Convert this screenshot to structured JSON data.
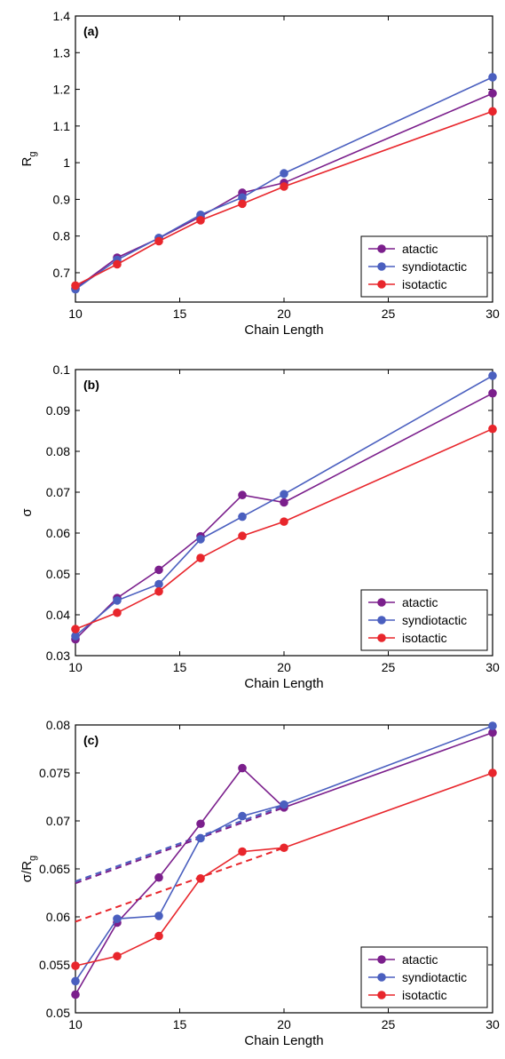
{
  "chart_data": [
    {
      "type": "line",
      "panel_label": "(a)",
      "xlabel": "Chain Length",
      "ylabel": "R",
      "ylabel_sub": "g",
      "xlim": [
        10,
        30
      ],
      "ylim": [
        0.62,
        1.4
      ],
      "x_ticks": [
        10,
        15,
        20,
        25,
        30
      ],
      "y_ticks": [
        0.7,
        0.8,
        0.9,
        1.0,
        1.1,
        1.2,
        1.3,
        1.4
      ],
      "y_tick_labels": [
        "0.7",
        "0.8",
        "0.9",
        "1",
        "1.1",
        "1.2",
        "1.3",
        "1.4"
      ],
      "grid": false,
      "legend_position": "bottom-right",
      "x": [
        10,
        12,
        14,
        16,
        18,
        20,
        30
      ],
      "series": [
        {
          "name": "atactic",
          "color": "#7b1f8c",
          "values": [
            0.657,
            0.741,
            0.794,
            0.853,
            0.918,
            0.945,
            1.189
          ]
        },
        {
          "name": "syndiotactic",
          "color": "#4a5fbf",
          "values": [
            0.655,
            0.735,
            0.795,
            0.858,
            0.905,
            0.971,
            1.233
          ]
        },
        {
          "name": "isotactic",
          "color": "#e8262c",
          "values": [
            0.665,
            0.723,
            0.786,
            0.843,
            0.888,
            0.935,
            1.14
          ]
        }
      ]
    },
    {
      "type": "line",
      "panel_label": "(b)",
      "xlabel": "Chain Length",
      "ylabel": "σ",
      "ylabel_sub": "",
      "xlim": [
        10,
        30
      ],
      "ylim": [
        0.03,
        0.1
      ],
      "x_ticks": [
        10,
        15,
        20,
        25,
        30
      ],
      "y_ticks": [
        0.03,
        0.04,
        0.05,
        0.06,
        0.07,
        0.08,
        0.09,
        0.1
      ],
      "y_tick_labels": [
        "0.03",
        "0.04",
        "0.05",
        "0.06",
        "0.07",
        "0.08",
        "0.09",
        "0.1"
      ],
      "grid": false,
      "legend_position": "bottom-right",
      "x": [
        10,
        12,
        14,
        16,
        18,
        20,
        30
      ],
      "series": [
        {
          "name": "atactic",
          "color": "#7b1f8c",
          "values": [
            0.034,
            0.0441,
            0.051,
            0.0592,
            0.0693,
            0.0675,
            0.0942
          ]
        },
        {
          "name": "syndiotactic",
          "color": "#4a5fbf",
          "values": [
            0.0348,
            0.0435,
            0.0475,
            0.0585,
            0.064,
            0.0695,
            0.0985
          ]
        },
        {
          "name": "isotactic",
          "color": "#e8262c",
          "values": [
            0.0365,
            0.0405,
            0.0457,
            0.0539,
            0.0593,
            0.0628,
            0.0855
          ]
        }
      ]
    },
    {
      "type": "line",
      "panel_label": "(c)",
      "xlabel": "Chain Length",
      "ylabel": "σ/R",
      "ylabel_sub": "g",
      "xlim": [
        10,
        30
      ],
      "ylim": [
        0.05,
        0.08
      ],
      "x_ticks": [
        10,
        15,
        20,
        25,
        30
      ],
      "y_ticks": [
        0.05,
        0.055,
        0.06,
        0.065,
        0.07,
        0.075,
        0.08
      ],
      "y_tick_labels": [
        "0.05",
        "0.055",
        "0.06",
        "0.065",
        "0.07",
        "0.075",
        "0.08"
      ],
      "grid": false,
      "legend_position": "bottom-right",
      "x": [
        10,
        12,
        14,
        16,
        18,
        20,
        30
      ],
      "series": [
        {
          "name": "atactic",
          "color": "#7b1f8c",
          "values": [
            0.0519,
            0.0594,
            0.0641,
            0.0697,
            0.0755,
            0.0714,
            0.0792
          ]
        },
        {
          "name": "syndiotactic",
          "color": "#4a5fbf",
          "values": [
            0.0533,
            0.0598,
            0.0601,
            0.0682,
            0.0705,
            0.0717,
            0.0799
          ]
        },
        {
          "name": "isotactic",
          "color": "#e8262c",
          "values": [
            0.0549,
            0.0559,
            0.058,
            0.064,
            0.0668,
            0.0672,
            0.075
          ]
        }
      ],
      "fit_lines": [
        {
          "color": "#7b1f8c",
          "x": [
            10,
            20
          ],
          "y": [
            0.0635,
            0.0714
          ]
        },
        {
          "color": "#4a5fbf",
          "x": [
            10,
            20
          ],
          "y": [
            0.0637,
            0.0716
          ]
        },
        {
          "color": "#e8262c",
          "x": [
            10,
            20
          ],
          "y": [
            0.0595,
            0.0672
          ]
        }
      ]
    }
  ]
}
